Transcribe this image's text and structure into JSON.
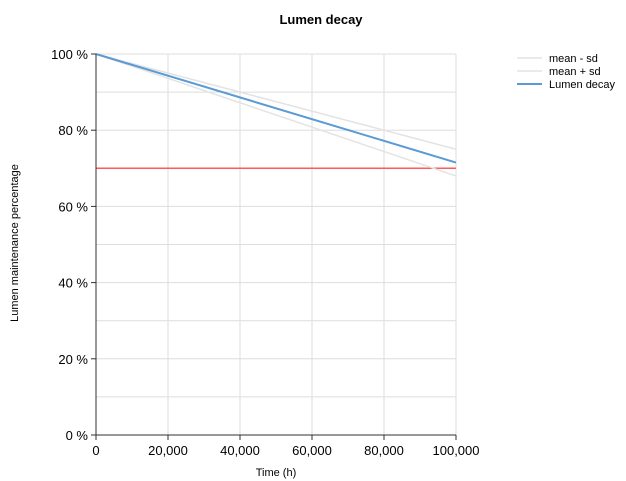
{
  "chart_data": {
    "type": "line",
    "title": "Lumen decay",
    "xlabel": "Time (h)",
    "ylabel": "Lumen maintenance percentage",
    "xlim": [
      0,
      100000
    ],
    "ylim": [
      0,
      100
    ],
    "x_ticks": [
      0,
      20000,
      40000,
      60000,
      80000,
      100000
    ],
    "x_tick_labels": [
      "0",
      "20,000",
      "40,000",
      "60,000",
      "80,000",
      "100,000"
    ],
    "y_ticks": [
      0,
      20,
      40,
      60,
      80,
      100
    ],
    "y_tick_labels": [
      "0 %",
      "20 %",
      "40 %",
      "60 %",
      "80 %",
      "100 %"
    ],
    "grid": true,
    "legend_position": "top-right",
    "series": [
      {
        "name": "mean - sd",
        "color": "#e3e3e3",
        "x": [
          0,
          100000
        ],
        "y": [
          100,
          68
        ]
      },
      {
        "name": "mean + sd",
        "color": "#e3e3e3",
        "x": [
          0,
          100000
        ],
        "y": [
          100,
          75
        ]
      },
      {
        "name": "Lumen decay",
        "color": "#5b9bd5",
        "x": [
          0,
          100000
        ],
        "y": [
          100,
          71.5
        ]
      }
    ],
    "threshold_line": {
      "y": 70,
      "color": "#ff5a5a"
    },
    "axis_color": "#303030",
    "grid_color": "#dedede"
  }
}
